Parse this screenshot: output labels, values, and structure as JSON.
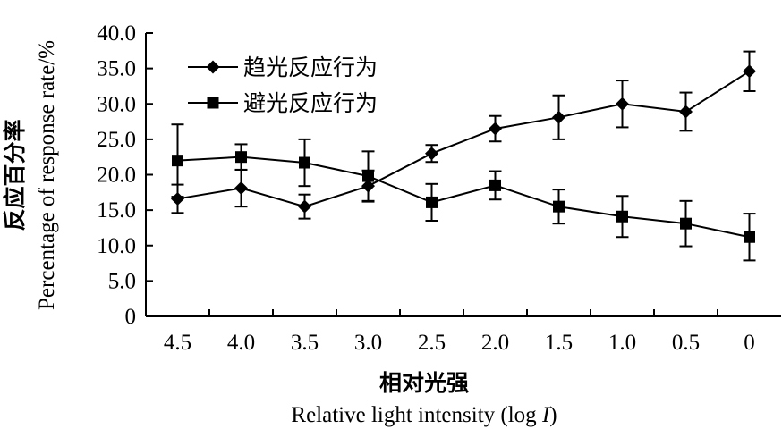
{
  "chart_data": {
    "type": "line",
    "categories": [
      "4.5",
      "4.0",
      "3.5",
      "3.0",
      "2.5",
      "2.0",
      "1.5",
      "1.0",
      "0.5",
      "0"
    ],
    "xlabel_cn": "相对光强",
    "xlabel_en": "Relative light intensity (log ",
    "xlabel_en_var": "I",
    "xlabel_en_end": ")",
    "ylabel_cn": "反应百分率",
    "ylabel_en": "Percentage of response rate/%",
    "ylim": [
      0,
      40
    ],
    "yticks": [
      "0",
      "5.0",
      "10.0",
      "15.0",
      "20.0",
      "25.0",
      "30.0",
      "35.0",
      "40.0"
    ],
    "legend_position": "top-left",
    "series": [
      {
        "name": "趋光反应行为",
        "marker": "diamond",
        "values": [
          16.6,
          18.1,
          15.5,
          18.4,
          23.0,
          26.5,
          28.1,
          30.0,
          28.9,
          34.6
        ],
        "errors": [
          2.0,
          2.6,
          1.7,
          2.2,
          1.2,
          1.8,
          3.1,
          3.3,
          2.7,
          2.8
        ]
      },
      {
        "name": "避光反应行为",
        "marker": "square",
        "values": [
          22.0,
          22.5,
          21.7,
          19.8,
          16.1,
          18.5,
          15.5,
          14.1,
          13.1,
          11.2
        ],
        "errors": [
          5.1,
          1.8,
          3.3,
          3.5,
          2.6,
          2.0,
          2.4,
          2.9,
          3.2,
          3.3
        ]
      }
    ]
  }
}
